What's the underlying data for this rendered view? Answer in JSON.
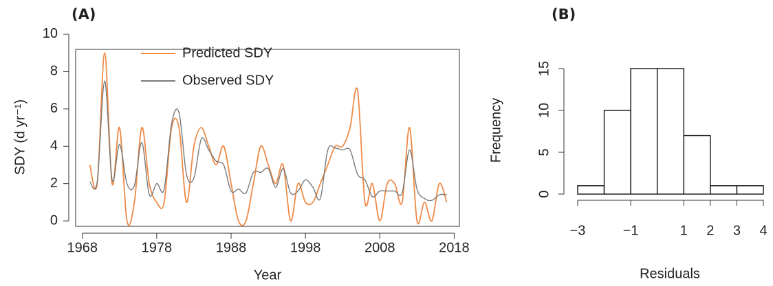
{
  "chart_data": [
    {
      "type": "line",
      "title": "(A)",
      "xlabel": "Year",
      "ylabel": "SDY (d yr⁻¹)",
      "x": [
        1969,
        1970,
        1971,
        1972,
        1973,
        1974,
        1975,
        1976,
        1977,
        1978,
        1979,
        1980,
        1981,
        1982,
        1983,
        1984,
        1985,
        1986,
        1987,
        1988,
        1989,
        1990,
        1991,
        1992,
        1993,
        1994,
        1995,
        1996,
        1997,
        1998,
        1999,
        2000,
        2001,
        2002,
        2003,
        2004,
        2005,
        2006,
        2007,
        2008,
        2009,
        2010,
        2011,
        2012,
        2013,
        2014,
        2015,
        2016,
        2017
      ],
      "series": [
        {
          "name": "Predicted SDY",
          "color": "#ef8a47",
          "values": [
            3,
            2,
            9,
            2,
            5,
            0,
            1,
            5,
            2,
            1,
            1,
            5,
            5,
            1,
            4,
            5,
            4,
            3,
            4,
            2,
            0,
            0,
            2,
            4,
            3,
            2,
            3,
            0,
            2,
            1,
            1,
            2,
            3,
            4,
            4,
            5,
            7,
            1,
            2,
            0,
            2,
            2,
            1,
            5,
            0,
            1,
            0,
            2,
            1
          ]
        },
        {
          "name": "Observed SDY",
          "color": "#7a7a7a",
          "values": [
            2.1,
            2.1,
            7.5,
            2.2,
            4.1,
            2,
            1.9,
            4.2,
            1.4,
            2,
            1.7,
            5.2,
            5.8,
            2.5,
            2.3,
            4.4,
            3.8,
            3.2,
            3,
            1.6,
            1.7,
            1.5,
            2.6,
            2.6,
            2.8,
            1.8,
            2.8,
            1.5,
            1.6,
            2.2,
            1.8,
            1.2,
            3.8,
            3.9,
            3.8,
            3.8,
            2.5,
            2.2,
            1.3,
            1.6,
            1.6,
            1.6,
            1.5,
            3.8,
            1.7,
            1.2,
            1.1,
            1.4,
            1.4
          ]
        }
      ],
      "xlim": [
        1967.1,
        2018.7
      ],
      "xticks": [
        1968,
        1978,
        1988,
        1998,
        2008,
        2018
      ],
      "ylim": [
        -0.29,
        9.19
      ],
      "yticks": [
        0,
        2,
        4,
        6,
        8,
        10
      ],
      "legend": "top"
    },
    {
      "type": "histogram",
      "title": "(B)",
      "xlabel": "Residuals",
      "ylabel": "Frequency",
      "bins": [
        -3,
        -2,
        -1,
        0,
        1,
        2,
        3,
        4
      ],
      "counts": [
        1,
        10,
        15,
        15,
        7,
        1,
        1
      ],
      "xlim": [
        -3,
        4
      ],
      "xticks": [
        {
          "value": -3,
          "label": "−3"
        },
        {
          "value": -1,
          "label": "−1"
        },
        1,
        2,
        3,
        4
      ],
      "ylim": [
        0,
        15
      ],
      "yticks": [
        0,
        5,
        10,
        15
      ],
      "color": "#ffffff"
    }
  ]
}
